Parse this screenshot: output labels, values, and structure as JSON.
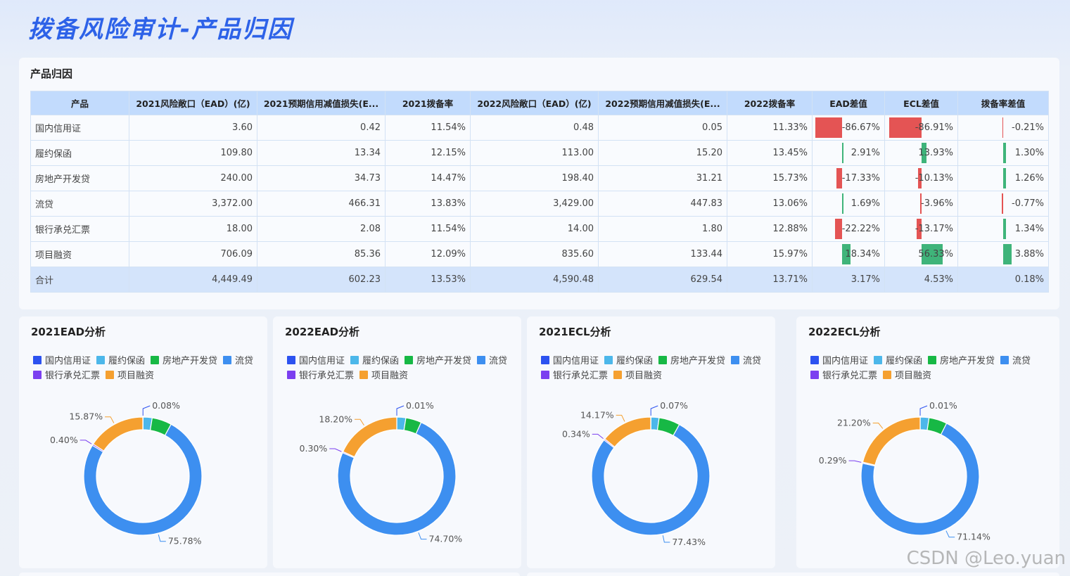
{
  "page_title": "拨备风险审计-产品归因",
  "table_panel": {
    "title": "产品归因",
    "columns": [
      "产品",
      "2021风险敞口（EAD）(亿)",
      "2021预期信用减值损失(E...",
      "2021拨备率",
      "2022风险敞口（EAD）(亿)",
      "2022预期信用减值损失(E...",
      "2022拨备率",
      "EAD差值",
      "ECL差值",
      "拨备率差值"
    ],
    "rows": [
      {
        "name": "国内信用证",
        "ead21": "3.60",
        "ecl21": "0.42",
        "rate21": "11.54%",
        "ead22": "0.48",
        "ecl22": "0.05",
        "rate22": "11.33%",
        "ead_diff": "-86.67%",
        "ecl_diff": "-86.91%",
        "rate_diff": "-0.21%",
        "ead_diff_v": -86.67,
        "ecl_diff_v": -86.91,
        "rate_diff_v": -0.21
      },
      {
        "name": "履约保函",
        "ead21": "109.80",
        "ecl21": "13.34",
        "rate21": "12.15%",
        "ead22": "113.00",
        "ecl22": "15.20",
        "rate22": "13.45%",
        "ead_diff": "2.91%",
        "ecl_diff": "13.93%",
        "rate_diff": "1.30%",
        "ead_diff_v": 2.91,
        "ecl_diff_v": 13.93,
        "rate_diff_v": 1.3
      },
      {
        "name": "房地产开发贷",
        "ead21": "240.00",
        "ecl21": "34.73",
        "rate21": "14.47%",
        "ead22": "198.40",
        "ecl22": "31.21",
        "rate22": "15.73%",
        "ead_diff": "-17.33%",
        "ecl_diff": "-10.13%",
        "rate_diff": "1.26%",
        "ead_diff_v": -17.33,
        "ecl_diff_v": -10.13,
        "rate_diff_v": 1.26
      },
      {
        "name": "流贷",
        "ead21": "3,372.00",
        "ecl21": "466.31",
        "rate21": "13.83%",
        "ead22": "3,429.00",
        "ecl22": "447.83",
        "rate22": "13.06%",
        "ead_diff": "1.69%",
        "ecl_diff": "-3.96%",
        "rate_diff": "-0.77%",
        "ead_diff_v": 1.69,
        "ecl_diff_v": -3.96,
        "rate_diff_v": -0.77
      },
      {
        "name": "银行承兑汇票",
        "ead21": "18.00",
        "ecl21": "2.08",
        "rate21": "11.54%",
        "ead22": "14.00",
        "ecl22": "1.80",
        "rate22": "12.88%",
        "ead_diff": "-22.22%",
        "ecl_diff": "-13.17%",
        "rate_diff": "1.34%",
        "ead_diff_v": -22.22,
        "ecl_diff_v": -13.17,
        "rate_diff_v": 1.34
      },
      {
        "name": "项目融资",
        "ead21": "706.09",
        "ecl21": "85.36",
        "rate21": "12.09%",
        "ead22": "835.60",
        "ecl22": "133.44",
        "rate22": "15.97%",
        "ead_diff": "18.34%",
        "ecl_diff": "56.33%",
        "rate_diff": "3.88%",
        "ead_diff_v": 18.34,
        "ecl_diff_v": 56.33,
        "rate_diff_v": 3.88
      }
    ],
    "total": {
      "name": "合计",
      "ead21": "4,449.49",
      "ecl21": "602.23",
      "rate21": "13.53%",
      "ead22": "4,590.48",
      "ecl22": "629.54",
      "rate22": "13.71%",
      "ead_diff": "3.17%",
      "ecl_diff": "4.53%",
      "rate_diff": "0.18%"
    },
    "colors": {
      "negative": "#e45454",
      "positive": "#3fb47a"
    }
  },
  "legend_items": [
    {
      "name": "国内信用证",
      "color": "#2c52f0"
    },
    {
      "name": "履约保函",
      "color": "#4cb7ea"
    },
    {
      "name": "房地产开发贷",
      "color": "#17b845"
    },
    {
      "name": "流贷",
      "color": "#3d8ff0"
    },
    {
      "name": "银行承兑汇票",
      "color": "#7b3ff0"
    },
    {
      "name": "项目融资",
      "color": "#f5a030"
    }
  ],
  "chart_data": [
    {
      "type": "pie",
      "title": "2021EAD分析",
      "categories": [
        "国内信用证",
        "履约保函",
        "房地产开发贷",
        "流贷",
        "银行承兑汇票",
        "项目融资"
      ],
      "values": [
        0.08,
        2.47,
        5.39,
        75.78,
        0.4,
        15.87
      ],
      "labels_shown": [
        "0.08%",
        "",
        "",
        "75.78%",
        "0.40%",
        "15.87%"
      ]
    },
    {
      "type": "pie",
      "title": "2022EAD分析",
      "categories": [
        "国内信用证",
        "履约保函",
        "房地产开发贷",
        "流贷",
        "银行承兑汇票",
        "项目融资"
      ],
      "values": [
        0.01,
        2.46,
        4.32,
        74.7,
        0.3,
        18.2
      ],
      "labels_shown": [
        "0.01%",
        "",
        "",
        "74.70%",
        "0.30%",
        "18.20%"
      ]
    },
    {
      "type": "pie",
      "title": "2021ECL分析",
      "categories": [
        "国内信用证",
        "履约保函",
        "房地产开发贷",
        "流贷",
        "银行承兑汇票",
        "项目融资"
      ],
      "values": [
        0.07,
        2.22,
        5.77,
        77.43,
        0.34,
        14.17
      ],
      "labels_shown": [
        "0.07%",
        "",
        "",
        "77.43%",
        "0.34%",
        "14.17%"
      ]
    },
    {
      "type": "pie",
      "title": "2022ECL分析",
      "categories": [
        "国内信用证",
        "履约保函",
        "房地产开发贷",
        "流贷",
        "银行承兑汇票",
        "项目融资"
      ],
      "values": [
        0.01,
        2.41,
        4.96,
        71.14,
        0.29,
        21.2
      ],
      "labels_shown": [
        "0.01%",
        "",
        "",
        "71.14%",
        "0.29%",
        "21.20%"
      ]
    }
  ],
  "watermark": "CSDN @Leo.yuan"
}
